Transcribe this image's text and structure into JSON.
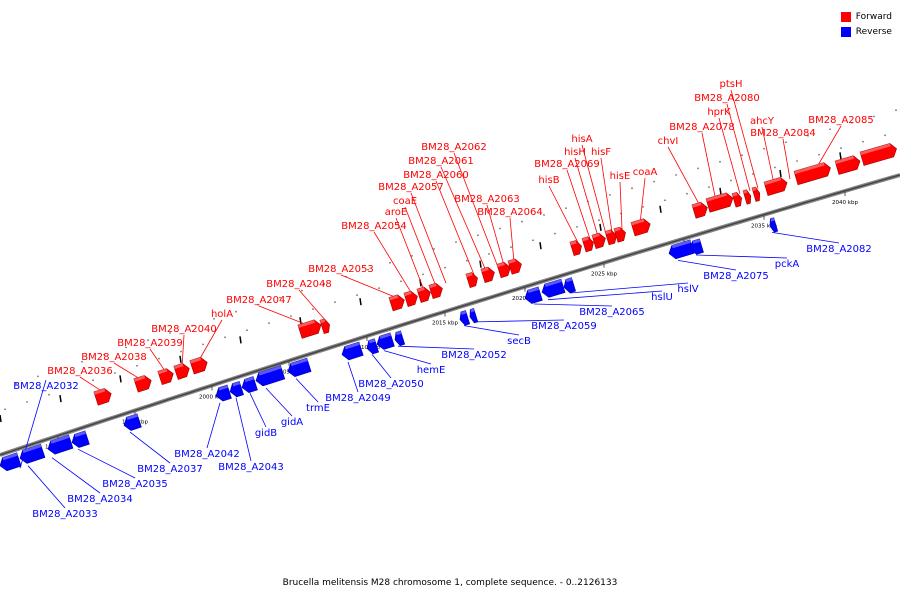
{
  "legend": {
    "forward_label": "Forward",
    "reverse_label": "Reverse",
    "forward_color": "#ff0000",
    "reverse_color": "#0000ff"
  },
  "caption": "Brucella melitensis M28 chromosome 1, complete sequence. - 0..2126133",
  "ticks": [
    "1990 kbp",
    "1995 kbp",
    "2000 kbp",
    "2005 kbp",
    "2010 kbp",
    "2015 kbp",
    "2020 kbp",
    "2025 kbp",
    "2030 kbp",
    "2035 kbp",
    "2040 kbp"
  ],
  "forward_labels": [
    "BM28_A2036",
    "BM28_A2038",
    "BM28_A2039",
    "BM28_A2040",
    "holA",
    "BM28_A2047",
    "BM28_A2048",
    "BM28_A2053",
    "BM28_A2054",
    "aroE",
    "coaE",
    "BM28_A2057",
    "BM28_A2060",
    "BM28_A2061",
    "BM28_A2062",
    "BM28_A2063",
    "BM28_A2064",
    "hisB",
    "BM28_A2069",
    "hisH",
    "hisA",
    "hisF",
    "hisE",
    "coaA",
    "chvI",
    "BM28_A2078",
    "hprK",
    "BM28_A2080",
    "ptsH",
    "ahcY",
    "BM28_A2084",
    "BM28_A2085"
  ],
  "reverse_labels": [
    "BM28_A2032",
    "BM28_A2033",
    "BM28_A2034",
    "BM28_A2035",
    "BM28_A2037",
    "BM28_A2042",
    "BM28_A2043",
    "gidB",
    "gidA",
    "trmE",
    "BM28_A2049",
    "BM28_A2050",
    "hemE",
    "BM28_A2052",
    "secB",
    "BM28_A2059",
    "BM28_A2065",
    "hslU",
    "hslV",
    "BM28_A2075",
    "pckA",
    "BM28_A2082"
  ]
}
